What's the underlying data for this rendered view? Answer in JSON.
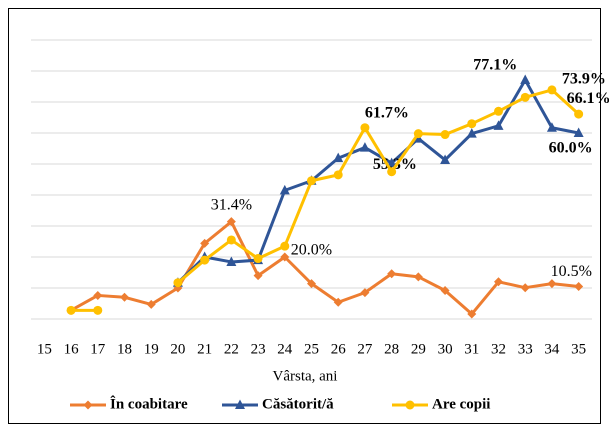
{
  "chart_data": {
    "type": "line",
    "x_label": "Vârsta, ani",
    "categories": [
      "15",
      "16",
      "17",
      "18",
      "19",
      "20",
      "21",
      "22",
      "23",
      "24",
      "25",
      "26",
      "27",
      "28",
      "29",
      "30",
      "31",
      "32",
      "33",
      "34",
      "35"
    ],
    "ylim": [
      0,
      90
    ],
    "yticks": [
      0,
      10,
      20,
      30,
      40,
      50,
      60,
      70,
      80,
      90
    ],
    "grid": true,
    "legend": "bottom",
    "series": [
      {
        "name": "În coabitare",
        "color": "#ED7D31",
        "marker": "diamond",
        "values": [
          null,
          2.8,
          7.6,
          7,
          4.7,
          10,
          24.4,
          31.4,
          14,
          20.0,
          11.4,
          5.4,
          8.5,
          14.6,
          13.6,
          9.2,
          1.6,
          12,
          10.1,
          11.4,
          10.5
        ],
        "value_labels": [
          null,
          null,
          null,
          null,
          null,
          null,
          null,
          "31.4%",
          null,
          "20.0%",
          null,
          null,
          null,
          null,
          null,
          null,
          null,
          null,
          null,
          null,
          "10.5%"
        ]
      },
      {
        "name": "Căsătorit/ă",
        "color": "#2F5597",
        "marker": "triangle",
        "values": [
          null,
          null,
          null,
          null,
          null,
          11.7,
          20,
          18.4,
          19,
          41.5,
          44.6,
          51.9,
          55.3,
          50.3,
          58.2,
          51.3,
          59.8,
          62.3,
          77.1,
          61.7,
          60.0
        ],
        "value_labels": [
          null,
          null,
          null,
          null,
          null,
          null,
          null,
          null,
          null,
          null,
          null,
          null,
          "55.3%",
          null,
          null,
          null,
          null,
          null,
          "77.1%",
          null,
          "60.0%"
        ]
      },
      {
        "name": "Are copii",
        "color": "#FFC000",
        "marker": "circle",
        "values": [
          null,
          2.8,
          2.8,
          null,
          null,
          11.7,
          19,
          25.5,
          19.5,
          23.5,
          44.6,
          46.5,
          61.7,
          47.5,
          59.8,
          59.5,
          63,
          67,
          71.5,
          73.9,
          66.1
        ],
        "value_labels": [
          null,
          null,
          null,
          null,
          null,
          null,
          null,
          null,
          null,
          null,
          null,
          null,
          "61.7%",
          null,
          null,
          null,
          null,
          null,
          null,
          "73.9%",
          "66.1%"
        ]
      }
    ]
  }
}
